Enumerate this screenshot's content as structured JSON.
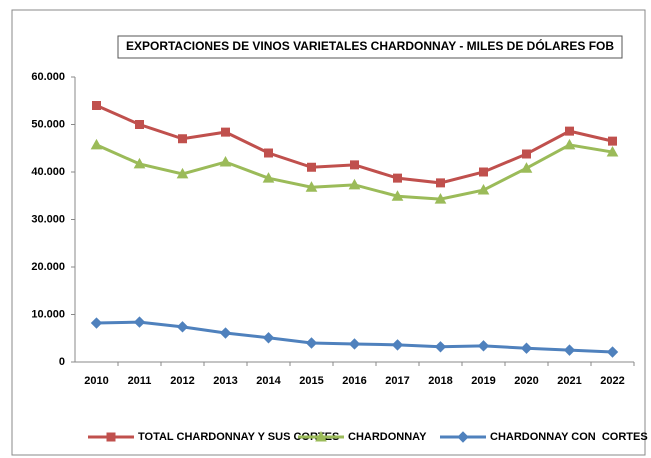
{
  "chart_data": {
    "type": "line",
    "title": "EXPORTACIONES DE VINOS VARIETALES CHARDONNAY - MILES DE DÓLARES FOB",
    "categories": [
      "2010",
      "2011",
      "2012",
      "2013",
      "2014",
      "2015",
      "2016",
      "2017",
      "2018",
      "2019",
      "2020",
      "2021",
      "2022"
    ],
    "series": [
      {
        "name": "TOTAL CHARDONNAY Y SUS CORTES",
        "color": "#c0504d",
        "marker": "square",
        "values": [
          54000,
          50000,
          47000,
          48400,
          44000,
          41000,
          41500,
          38700,
          37700,
          40000,
          43800,
          48600,
          46500
        ]
      },
      {
        "name": "CHARDONNAY",
        "color": "#9bbb59",
        "marker": "triangle",
        "values": [
          45700,
          41700,
          39600,
          42100,
          38700,
          36800,
          37300,
          34900,
          34300,
          36200,
          40800,
          45700,
          44200
        ]
      },
      {
        "name": "CHARDONNAY CON  CORTES",
        "color": "#4f81bd",
        "marker": "diamond",
        "values": [
          8200,
          8400,
          7400,
          6100,
          5100,
          4000,
          3800,
          3600,
          3200,
          3400,
          2900,
          2500,
          2100
        ]
      }
    ],
    "ylim": [
      0,
      60000
    ],
    "yticks": [
      0,
      {
        "value": 10000,
        "label": "10.000"
      },
      {
        "value": 20000,
        "label": "20.000"
      },
      {
        "value": 30000,
        "label": "30.000"
      },
      {
        "value": 40000,
        "label": "40.000"
      },
      {
        "value": 50000,
        "label": "50.000"
      },
      {
        "value": 60000,
        "label": "60.000"
      }
    ],
    "grid": false,
    "legend": "bottom"
  }
}
